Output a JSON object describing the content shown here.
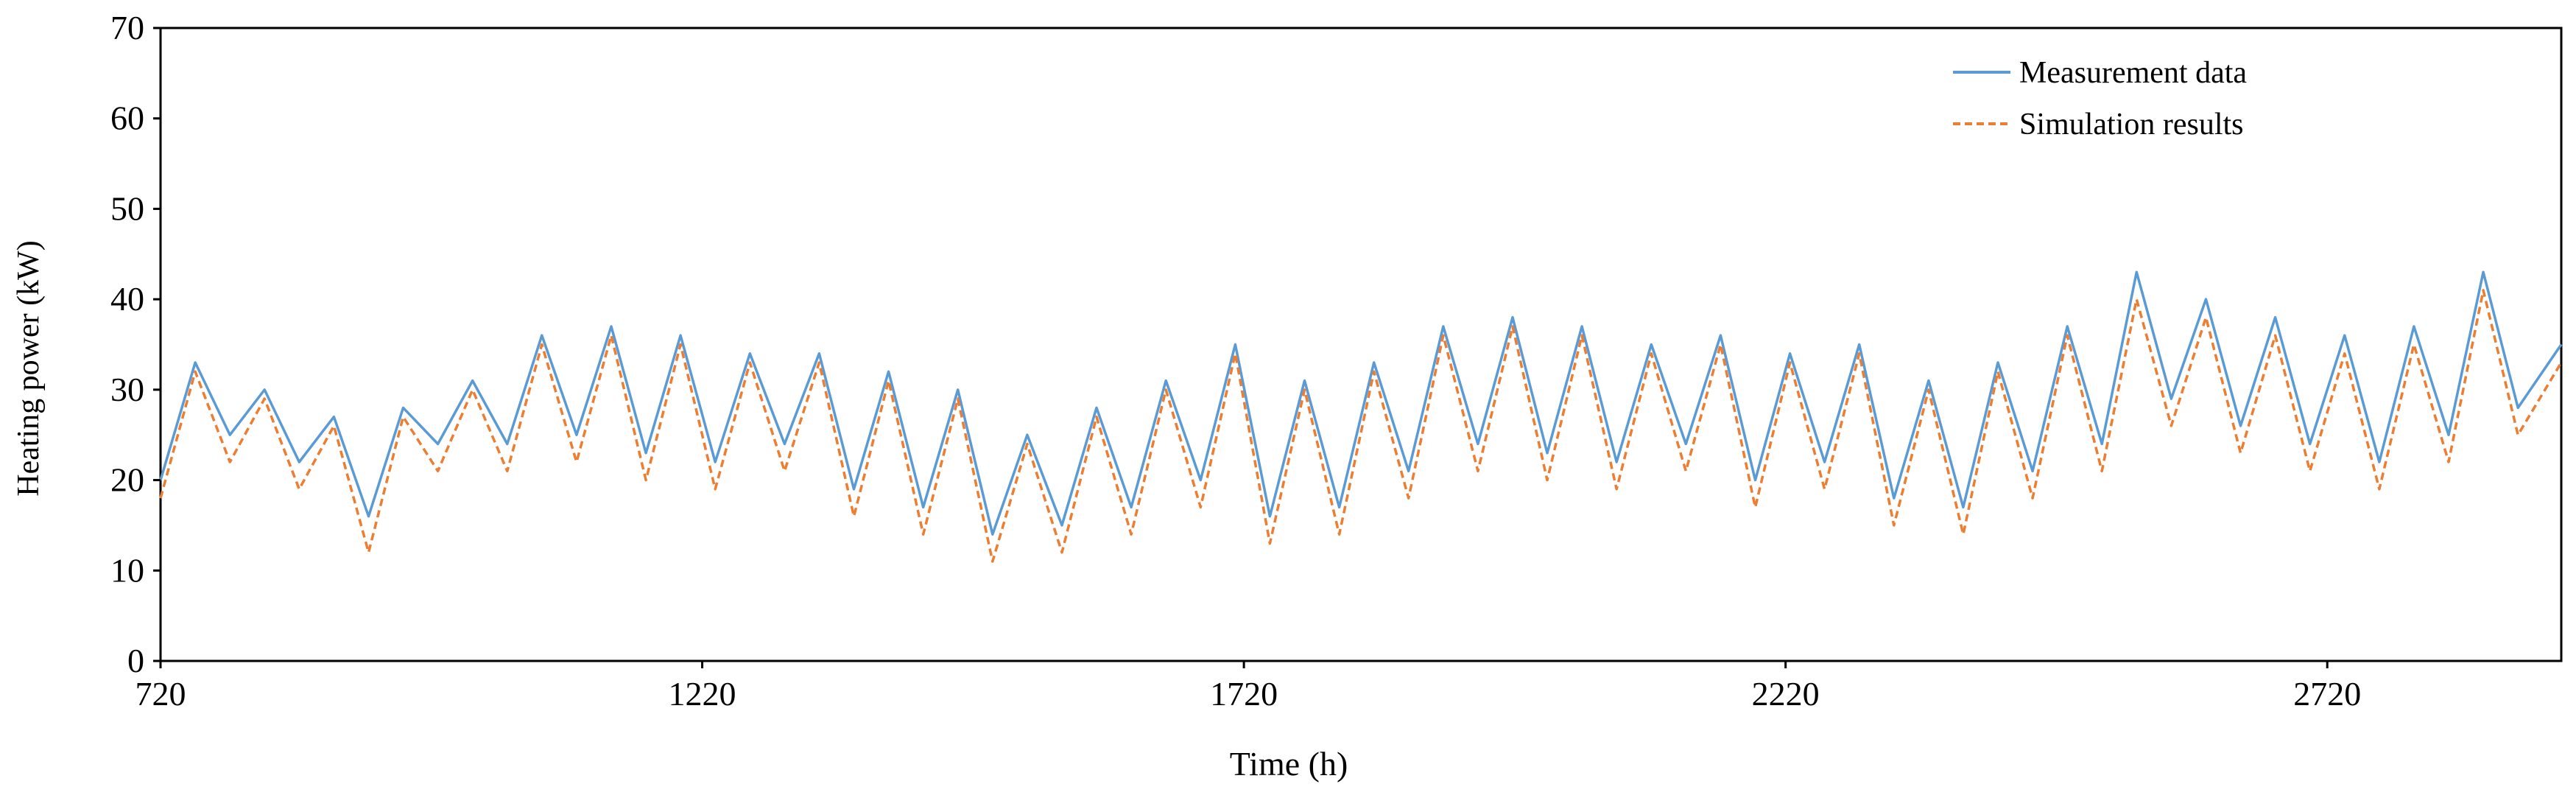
{
  "chart_data": {
    "type": "line",
    "xlabel": "Time (h)",
    "ylabel": "Heating power (kW)",
    "xlim": [
      720,
      2936
    ],
    "ylim": [
      0,
      70
    ],
    "x_ticks": [
      "720",
      "1220",
      "1720",
      "2220",
      "2720"
    ],
    "y_ticks": [
      "0",
      "10",
      "20",
      "30",
      "40",
      "50",
      "60",
      "70"
    ],
    "x_tick_values": [
      720,
      1220,
      1720,
      2220,
      2720
    ],
    "y_tick_values": [
      0,
      10,
      20,
      30,
      40,
      50,
      60,
      70
    ],
    "grid": false,
    "legend_position": "top-right",
    "series": [
      {
        "name": "Measurement data",
        "color": "#5b9bd5",
        "style": "solid",
        "x": [
          720,
          752,
          784,
          816,
          848,
          880,
          912,
          944,
          976,
          1008,
          1040,
          1072,
          1104,
          1136,
          1168,
          1200,
          1232,
          1264,
          1296,
          1328,
          1360,
          1392,
          1424,
          1456,
          1488,
          1520,
          1552,
          1584,
          1616,
          1648,
          1680,
          1712,
          1744,
          1776,
          1808,
          1840,
          1872,
          1904,
          1936,
          1968,
          2000,
          2032,
          2064,
          2096,
          2128,
          2160,
          2192,
          2224,
          2256,
          2288,
          2320,
          2352,
          2384,
          2416,
          2448,
          2480,
          2512,
          2544,
          2576,
          2608,
          2640,
          2672,
          2704,
          2736,
          2768,
          2800,
          2832,
          2864,
          2896,
          2936
        ],
        "values": [
          20,
          33,
          25,
          30,
          22,
          27,
          16,
          28,
          24,
          31,
          24,
          36,
          25,
          37,
          23,
          36,
          22,
          34,
          24,
          34,
          19,
          32,
          17,
          30,
          14,
          25,
          15,
          28,
          17,
          31,
          20,
          35,
          16,
          31,
          17,
          33,
          21,
          37,
          24,
          38,
          23,
          37,
          22,
          35,
          24,
          36,
          20,
          34,
          22,
          35,
          18,
          31,
          17,
          33,
          21,
          37,
          24,
          43,
          29,
          40,
          26,
          38,
          24,
          36,
          22,
          37,
          25,
          43,
          28,
          35
        ]
      },
      {
        "name": "Simulation results",
        "color": "#ed7d31",
        "style": "dashed",
        "x": [
          720,
          752,
          784,
          816,
          848,
          880,
          912,
          944,
          976,
          1008,
          1040,
          1072,
          1104,
          1136,
          1168,
          1200,
          1232,
          1264,
          1296,
          1328,
          1360,
          1392,
          1424,
          1456,
          1488,
          1520,
          1552,
          1584,
          1616,
          1648,
          1680,
          1712,
          1744,
          1776,
          1808,
          1840,
          1872,
          1904,
          1936,
          1968,
          2000,
          2032,
          2064,
          2096,
          2128,
          2160,
          2192,
          2224,
          2256,
          2288,
          2320,
          2352,
          2384,
          2416,
          2448,
          2480,
          2512,
          2544,
          2576,
          2608,
          2640,
          2672,
          2704,
          2736,
          2768,
          2800,
          2832,
          2864,
          2896,
          2936
        ],
        "values": [
          18,
          32,
          22,
          29,
          19,
          26,
          12,
          27,
          21,
          30,
          21,
          35,
          22,
          36,
          20,
          35,
          19,
          33,
          21,
          33,
          16,
          31,
          14,
          29,
          11,
          24,
          12,
          27,
          14,
          30,
          17,
          34,
          13,
          30,
          14,
          32,
          18,
          36,
          21,
          37,
          20,
          36,
          19,
          34,
          21,
          35,
          17,
          33,
          19,
          34,
          15,
          30,
          14,
          32,
          18,
          36,
          21,
          40,
          26,
          38,
          23,
          36,
          21,
          34,
          19,
          35,
          22,
          41,
          25,
          33
        ]
      }
    ]
  }
}
